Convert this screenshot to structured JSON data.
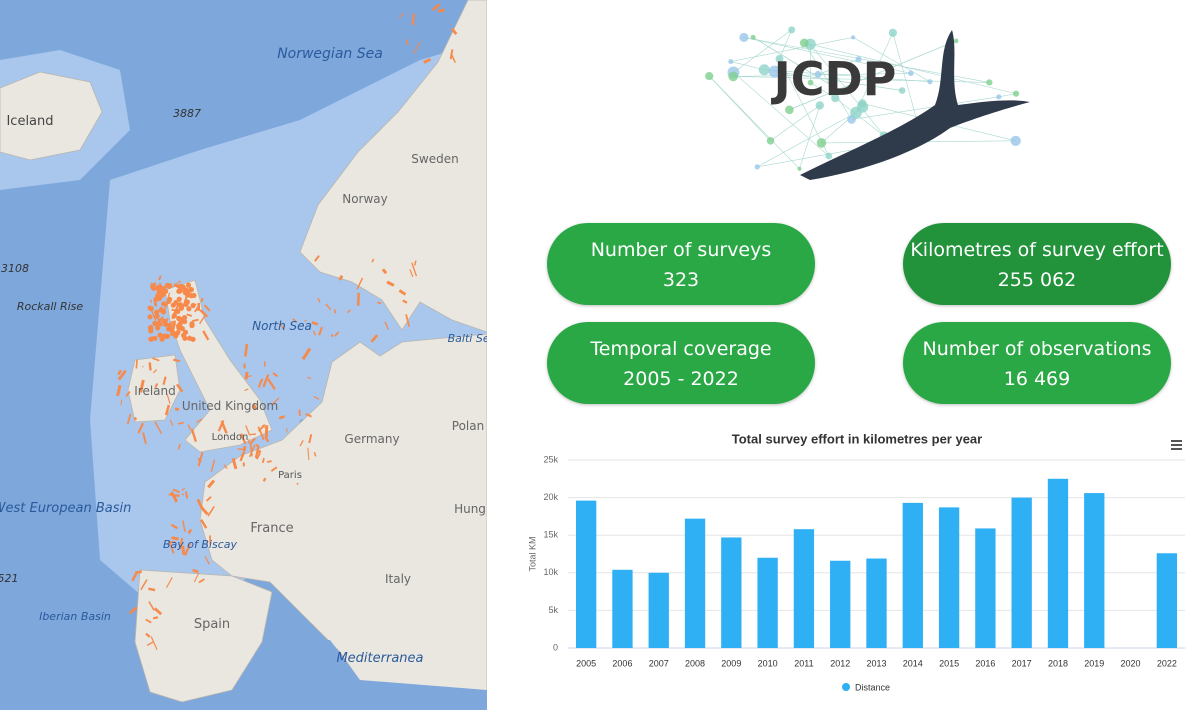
{
  "map": {
    "labels": [
      "Norwegian Sea",
      "Iceland",
      "3887",
      "Sweden",
      "Norway",
      "3108",
      "Rockall Rise",
      "North Sea",
      "Balti Sea",
      "Ireland",
      "United Kingdom",
      "London",
      "Germany",
      "Polan",
      "Paris",
      "Hung",
      "West European Basin",
      "Bay of Biscay",
      "France",
      "Italy",
      "Spain",
      "Iberian Basin",
      "521",
      "Mediterranea"
    ]
  },
  "logo": {
    "text": "JCDP"
  },
  "stats": [
    {
      "label": "Number of surveys",
      "value": "323"
    },
    {
      "label": "Kilometres of survey effort",
      "value": "255 062"
    },
    {
      "label": "Temporal coverage",
      "value": "2005 - 2022"
    },
    {
      "label": "Number of observations",
      "value": "16 469"
    }
  ],
  "chart_data": {
    "type": "bar",
    "title": "Total survey effort in kilometres per year",
    "y_label": "Total KM",
    "categories": [
      "2005",
      "2006",
      "2007",
      "2008",
      "2009",
      "2010",
      "2011",
      "2012",
      "2013",
      "2014",
      "2015",
      "2016",
      "2017",
      "2018",
      "2019",
      "2020",
      "2022"
    ],
    "series": [
      {
        "name": "Distance",
        "color": "#2fb0f4",
        "values": [
          19600,
          10400,
          10000,
          17200,
          14700,
          12000,
          15800,
          11600,
          11900,
          19300,
          18700,
          15900,
          20000,
          22500,
          20600,
          null,
          12600
        ]
      }
    ],
    "ylim": [
      0,
      25000
    ],
    "yticks": [
      0,
      {
        "value": 5000,
        "label": "5k"
      },
      {
        "value": 10000,
        "label": "10k"
      },
      {
        "value": 15000,
        "label": "15k"
      },
      {
        "value": 20000,
        "label": "20k"
      },
      {
        "value": 25000,
        "label": "25k"
      }
    ],
    "grid": true,
    "legend": "bottom"
  }
}
